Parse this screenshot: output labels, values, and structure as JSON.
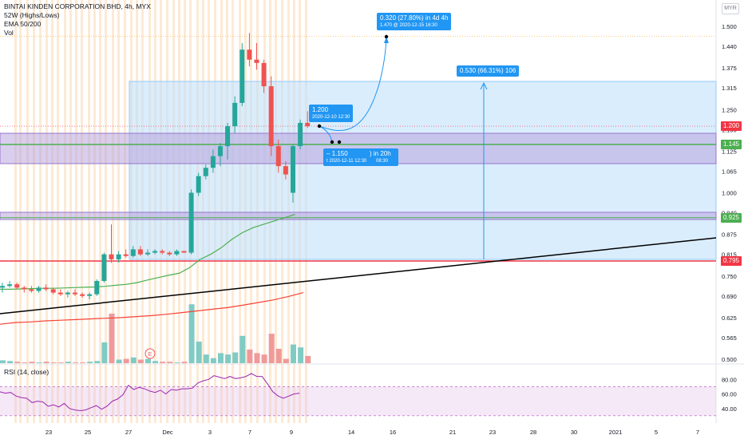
{
  "header": {
    "title": "BINTAI KINDEN CORPORATION BHD, 4h, MYX",
    "ind1": "52W (Highs/Lows)",
    "ind2": "EMA 50/200",
    "ind3": "Vol",
    "rsi": "RSI (14, close)"
  },
  "currency": "MYR",
  "colors": {
    "up": "#26a69a",
    "down": "#ef5350",
    "ema50": "#4caf50",
    "ema200": "#f44336",
    "box": "#2196f3",
    "purple": "#9575cd",
    "green_line": "#4caf50",
    "red_line": "#f23645",
    "trend": "#000000",
    "rsi": "#9c27b0",
    "session": "#f7b267"
  },
  "price_tags": [
    {
      "label": "1.200",
      "price": 1.2,
      "color": "#f23645"
    },
    {
      "label": "1.145",
      "price": 1.145,
      "color": "#4caf50"
    },
    {
      "label": "0.925",
      "price": 0.925,
      "color": "#4caf50"
    },
    {
      "label": "0.795",
      "price": 0.795,
      "color": "#f23645"
    }
  ],
  "annotations": {
    "proj_big_pct": "0.320 (27.80%) in 4d 4h",
    "proj_big_sub": "1.470 @ 2020-12-15 16:30",
    "range_label": "0.530 (66.31%) 106",
    "point_a_price": "1.200",
    "point_a_time": "2020-12-10 12:30",
    "point_b_price": "1.150",
    "point_b_time": "2020-12-11 12:30",
    "point_b_dur": ") in 20h",
    "point_b_dur2": "08:30",
    "point_b_prefix": "–",
    "point_b_t": "t",
    "earnings": "E"
  },
  "chart_data": {
    "type": "candlestick",
    "title": "BINTAI KINDEN CORPORATION BHD, 4h, MYX",
    "price_axis": {
      "ticks": [
        "1.500",
        "1.440",
        "1.375",
        "1.315",
        "1.250",
        "1.190",
        "1.125",
        "1.065",
        "1.000",
        "0.940",
        "0.875",
        "0.815",
        "0.750",
        "0.690",
        "0.625",
        "0.565",
        "0.500"
      ],
      "range": [
        0.5,
        1.5
      ]
    },
    "time_axis": {
      "ticks": [
        "23",
        "25",
        "27",
        "Dec",
        "3",
        "7",
        "9",
        "14",
        "16",
        "21",
        "23",
        "28",
        "30",
        "2021",
        "5",
        "7"
      ]
    },
    "rsi_axis": {
      "ticks": [
        "80.00",
        "60.00",
        "40.00"
      ],
      "range": [
        20,
        100
      ],
      "band": [
        30,
        70
      ]
    },
    "candles": [
      {
        "o": 0.715,
        "h": 0.73,
        "l": 0.7,
        "c": 0.72
      },
      {
        "o": 0.72,
        "h": 0.735,
        "l": 0.715,
        "c": 0.725
      },
      {
        "o": 0.725,
        "h": 0.73,
        "l": 0.71,
        "c": 0.715
      },
      {
        "o": 0.715,
        "h": 0.72,
        "l": 0.7,
        "c": 0.71
      },
      {
        "o": 0.71,
        "h": 0.72,
        "l": 0.7,
        "c": 0.705
      },
      {
        "o": 0.705,
        "h": 0.72,
        "l": 0.7,
        "c": 0.715
      },
      {
        "o": 0.715,
        "h": 0.725,
        "l": 0.705,
        "c": 0.71
      },
      {
        "o": 0.71,
        "h": 0.715,
        "l": 0.695,
        "c": 0.7
      },
      {
        "o": 0.7,
        "h": 0.71,
        "l": 0.69,
        "c": 0.695
      },
      {
        "o": 0.695,
        "h": 0.705,
        "l": 0.685,
        "c": 0.7
      },
      {
        "o": 0.7,
        "h": 0.71,
        "l": 0.69,
        "c": 0.695
      },
      {
        "o": 0.695,
        "h": 0.7,
        "l": 0.685,
        "c": 0.69
      },
      {
        "o": 0.69,
        "h": 0.7,
        "l": 0.68,
        "c": 0.695
      },
      {
        "o": 0.695,
        "h": 0.74,
        "l": 0.69,
        "c": 0.735
      },
      {
        "o": 0.735,
        "h": 0.82,
        "l": 0.73,
        "c": 0.815
      },
      {
        "o": 0.815,
        "h": 0.905,
        "l": 0.79,
        "c": 0.8
      },
      {
        "o": 0.8,
        "h": 0.825,
        "l": 0.79,
        "c": 0.815
      },
      {
        "o": 0.815,
        "h": 0.83,
        "l": 0.805,
        "c": 0.81
      },
      {
        "o": 0.81,
        "h": 0.84,
        "l": 0.805,
        "c": 0.83
      },
      {
        "o": 0.83,
        "h": 0.84,
        "l": 0.81,
        "c": 0.815
      },
      {
        "o": 0.815,
        "h": 0.83,
        "l": 0.81,
        "c": 0.82
      },
      {
        "o": 0.82,
        "h": 0.83,
        "l": 0.815,
        "c": 0.825
      },
      {
        "o": 0.825,
        "h": 0.83,
        "l": 0.815,
        "c": 0.82
      },
      {
        "o": 0.82,
        "h": 0.825,
        "l": 0.81,
        "c": 0.815
      },
      {
        "o": 0.815,
        "h": 0.83,
        "l": 0.81,
        "c": 0.825
      },
      {
        "o": 0.825,
        "h": 0.82,
        "l": 0.82,
        "c": 0.82
      },
      {
        "o": 0.82,
        "h": 1.01,
        "l": 0.815,
        "c": 1.0
      },
      {
        "o": 1.0,
        "h": 1.06,
        "l": 0.99,
        "c": 1.05
      },
      {
        "o": 1.05,
        "h": 1.085,
        "l": 1.04,
        "c": 1.075
      },
      {
        "o": 1.075,
        "h": 1.13,
        "l": 1.06,
        "c": 1.11
      },
      {
        "o": 1.11,
        "h": 1.15,
        "l": 1.08,
        "c": 1.14
      },
      {
        "o": 1.14,
        "h": 1.21,
        "l": 1.1,
        "c": 1.2
      },
      {
        "o": 1.2,
        "h": 1.29,
        "l": 1.18,
        "c": 1.27
      },
      {
        "o": 1.27,
        "h": 1.45,
        "l": 1.26,
        "c": 1.43
      },
      {
        "o": 1.43,
        "h": 1.48,
        "l": 1.38,
        "c": 1.4
      },
      {
        "o": 1.4,
        "h": 1.45,
        "l": 1.37,
        "c": 1.39
      },
      {
        "o": 1.39,
        "h": 1.4,
        "l": 1.3,
        "c": 1.32
      },
      {
        "o": 1.32,
        "h": 1.35,
        "l": 1.11,
        "c": 1.14
      },
      {
        "o": 1.14,
        "h": 1.16,
        "l": 1.06,
        "c": 1.08
      },
      {
        "o": 1.08,
        "h": 1.095,
        "l": 1.04,
        "c": 1.055
      },
      {
        "o": 1.0,
        "h": 1.145,
        "l": 0.97,
        "c": 1.14
      },
      {
        "o": 1.14,
        "h": 1.22,
        "l": 1.13,
        "c": 1.21
      },
      {
        "o": 1.21,
        "h": 1.245,
        "l": 1.195,
        "c": 1.2
      }
    ],
    "volume": [
      0.04,
      0.03,
      0.02,
      0.01,
      0.02,
      0.01,
      0.02,
      0.01,
      0.01,
      0.02,
      0.01,
      0.01,
      0.02,
      0.03,
      0.29,
      0.69,
      0.05,
      0.06,
      0.08,
      0.05,
      0.06,
      0.03,
      0.02,
      0.02,
      0.01,
      0.02,
      0.82,
      0.3,
      0.12,
      0.07,
      0.14,
      0.12,
      0.15,
      0.38,
      0.19,
      0.14,
      0.12,
      0.41,
      0.2,
      0.06,
      0.26,
      0.22,
      0.1
    ],
    "ema50": [
      0.71,
      0.71,
      0.711,
      0.712,
      0.713,
      0.713,
      0.714,
      0.715,
      0.716,
      0.717,
      0.719,
      0.722,
      0.725,
      0.73,
      0.738,
      0.745,
      0.752,
      0.758,
      0.775,
      0.8,
      0.815,
      0.835,
      0.86,
      0.88,
      0.895,
      0.905,
      0.915,
      0.925,
      0.935
    ],
    "ema200": [
      0.605,
      0.61,
      0.612,
      0.615,
      0.617,
      0.619,
      0.621,
      0.623,
      0.625,
      0.628,
      0.631,
      0.635,
      0.64,
      0.645,
      0.65,
      0.655,
      0.662,
      0.67,
      0.678,
      0.688,
      0.7
    ],
    "rsi": [
      63,
      61,
      62,
      57,
      55,
      54,
      48,
      50,
      49,
      43,
      45,
      42,
      47,
      40,
      38,
      37,
      38,
      41,
      44,
      39,
      43,
      50,
      53,
      59,
      72,
      66,
      69,
      67,
      64,
      62,
      65,
      60,
      66,
      65,
      67,
      67,
      68,
      75,
      78,
      80,
      85,
      83,
      81,
      84,
      81,
      82,
      84,
      88,
      84,
      84,
      74,
      63,
      57,
      54,
      57,
      60,
      61
    ]
  }
}
